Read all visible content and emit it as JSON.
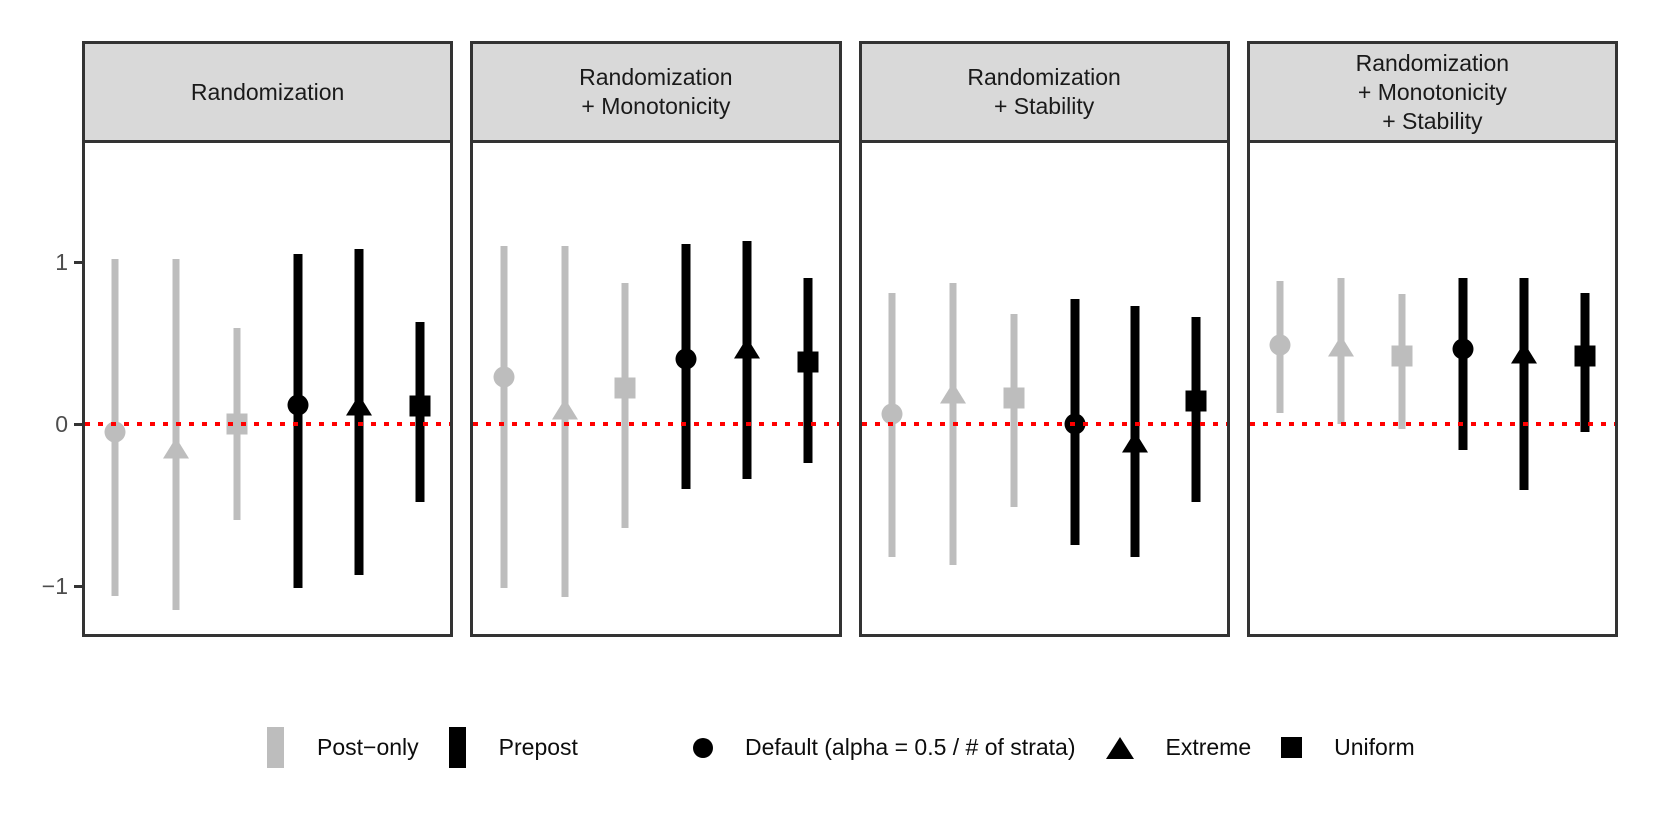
{
  "chart_data": {
    "type": "pointrange-facets",
    "title": "",
    "xlabel": "",
    "ylabel": "",
    "grid": "off",
    "y_axis": {
      "tick_labels": [
        "1",
        "0",
        "−1"
      ],
      "tick_values": [
        1,
        0,
        -1
      ],
      "range_shown": [
        -1.31,
        1.73
      ]
    },
    "reference_line": {
      "y": 0,
      "style": "dotted",
      "color": "#ff0000"
    },
    "colors": {
      "post_only": "#bdbdbd",
      "prepost": "#000000"
    },
    "group_labels": {
      "post_only": "Post−only",
      "prepost": "Prepost"
    },
    "shape_labels": {
      "circle": "Default (alpha = 0.5 / # of strata)",
      "triangle": "Extreme",
      "square": "Uniform"
    },
    "panels": [
      {
        "title_lines": [
          "Randomization"
        ],
        "points": [
          {
            "group": "post_only",
            "shape": "circle",
            "est": -0.05,
            "lo": -1.06,
            "hi": 1.02
          },
          {
            "group": "post_only",
            "shape": "triangle",
            "est": -0.15,
            "lo": -1.15,
            "hi": 1.02
          },
          {
            "group": "post_only",
            "shape": "square",
            "est": 0.0,
            "lo": -0.59,
            "hi": 0.59
          },
          {
            "group": "prepost",
            "shape": "circle",
            "est": 0.12,
            "lo": -1.01,
            "hi": 1.05
          },
          {
            "group": "prepost",
            "shape": "triangle",
            "est": 0.12,
            "lo": -0.93,
            "hi": 1.08
          },
          {
            "group": "prepost",
            "shape": "square",
            "est": 0.11,
            "lo": -0.48,
            "hi": 0.63
          }
        ]
      },
      {
        "title_lines": [
          "Randomization",
          "+ Monotonicity"
        ],
        "points": [
          {
            "group": "post_only",
            "shape": "circle",
            "est": 0.29,
            "lo": -1.01,
            "hi": 1.1
          },
          {
            "group": "post_only",
            "shape": "triangle",
            "est": 0.09,
            "lo": -1.07,
            "hi": 1.1
          },
          {
            "group": "post_only",
            "shape": "square",
            "est": 0.22,
            "lo": -0.64,
            "hi": 0.87
          },
          {
            "group": "prepost",
            "shape": "circle",
            "est": 0.4,
            "lo": -0.4,
            "hi": 1.11
          },
          {
            "group": "prepost",
            "shape": "triangle",
            "est": 0.47,
            "lo": -0.34,
            "hi": 1.13
          },
          {
            "group": "prepost",
            "shape": "square",
            "est": 0.38,
            "lo": -0.24,
            "hi": 0.9
          }
        ]
      },
      {
        "title_lines": [
          "Randomization",
          "+ Stability"
        ],
        "points": [
          {
            "group": "post_only",
            "shape": "circle",
            "est": 0.06,
            "lo": -0.82,
            "hi": 0.81
          },
          {
            "group": "post_only",
            "shape": "triangle",
            "est": 0.19,
            "lo": -0.87,
            "hi": 0.87
          },
          {
            "group": "post_only",
            "shape": "square",
            "est": 0.16,
            "lo": -0.51,
            "hi": 0.68
          },
          {
            "group": "prepost",
            "shape": "circle",
            "est": 0.0,
            "lo": -0.75,
            "hi": 0.77
          },
          {
            "group": "prepost",
            "shape": "triangle",
            "est": -0.11,
            "lo": -0.82,
            "hi": 0.73
          },
          {
            "group": "prepost",
            "shape": "square",
            "est": 0.14,
            "lo": -0.48,
            "hi": 0.66
          }
        ]
      },
      {
        "title_lines": [
          "Randomization",
          "+ Monotonicity",
          "+ Stability"
        ],
        "points": [
          {
            "group": "post_only",
            "shape": "circle",
            "est": 0.49,
            "lo": 0.07,
            "hi": 0.88
          },
          {
            "group": "post_only",
            "shape": "triangle",
            "est": 0.48,
            "lo": 0.0,
            "hi": 0.9
          },
          {
            "group": "post_only",
            "shape": "square",
            "est": 0.42,
            "lo": -0.03,
            "hi": 0.8
          },
          {
            "group": "prepost",
            "shape": "circle",
            "est": 0.46,
            "lo": -0.16,
            "hi": 0.9
          },
          {
            "group": "prepost",
            "shape": "triangle",
            "est": 0.44,
            "lo": -0.41,
            "hi": 0.9
          },
          {
            "group": "prepost",
            "shape": "square",
            "est": 0.42,
            "lo": -0.05,
            "hi": 0.81
          }
        ]
      }
    ]
  },
  "legend": {
    "groups": [
      {
        "key": "post_only",
        "label": "Post−only",
        "swatch": "bar",
        "color": "#bdbdbd"
      },
      {
        "key": "prepost",
        "label": "Prepost",
        "swatch": "bar",
        "color": "#000000"
      }
    ],
    "shapes": [
      {
        "key": "circle",
        "label": "Default (alpha = 0.5 / # of strata)"
      },
      {
        "key": "triangle",
        "label": "Extreme"
      },
      {
        "key": "square",
        "label": "Uniform"
      }
    ]
  }
}
